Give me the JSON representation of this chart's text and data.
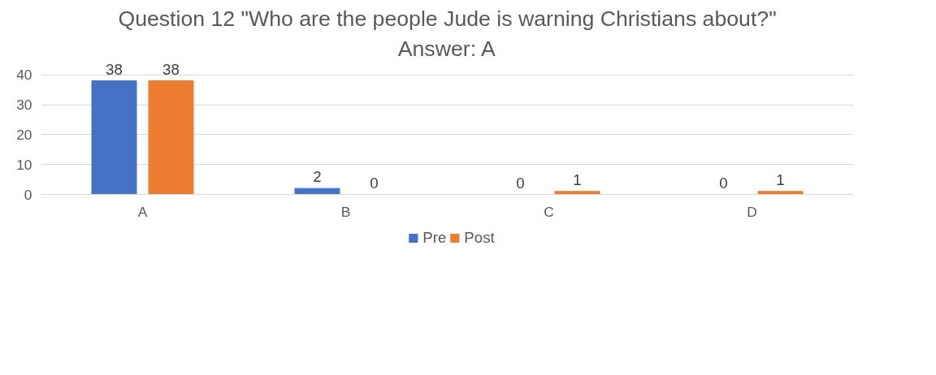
{
  "chart_data": {
    "type": "bar",
    "title": "Question 12 \"Who are the people Jude is warning Christians about?\"",
    "subtitle": "Answer: A",
    "categories": [
      "A",
      "B",
      "C",
      "D"
    ],
    "series": [
      {
        "name": "Pre",
        "color": "#4472c4",
        "values": [
          38,
          2,
          0,
          0
        ]
      },
      {
        "name": "Post",
        "color": "#ed7d31",
        "values": [
          38,
          0,
          1,
          1
        ]
      }
    ],
    "ylim": [
      0,
      40
    ],
    "yticks": [
      0,
      10,
      20,
      30,
      40
    ],
    "grid": "y",
    "legend": "bottom",
    "data_labels": true
  }
}
